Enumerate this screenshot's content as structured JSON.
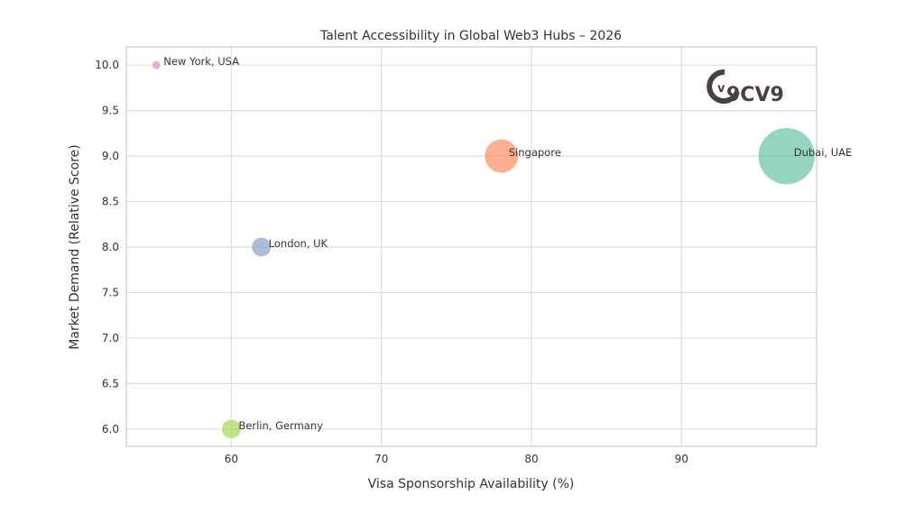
{
  "chart_data": {
    "type": "scatter",
    "title": "Talent Accessibility in Global Web3 Hubs – 2026",
    "xlabel": "Visa Sponsorship Availability (%)",
    "ylabel": "Market Demand (Relative Score)",
    "xlim": [
      53,
      99
    ],
    "ylim": [
      5.81,
      10.2
    ],
    "xticks": [
      60,
      70,
      80,
      90
    ],
    "yticks": [
      6.0,
      6.5,
      7.0,
      7.5,
      8.0,
      8.5,
      9.0,
      9.5,
      10.0
    ],
    "grid": true,
    "points": [
      {
        "label": "Dubai, UAE",
        "x": 97,
        "y": 9.0,
        "size": 1000,
        "color": "#66c2a5"
      },
      {
        "label": "Singapore",
        "x": 78,
        "y": 9.0,
        "size": 360,
        "color": "#fc8d62"
      },
      {
        "label": "London, UK",
        "x": 62,
        "y": 8.0,
        "size": 120,
        "color": "#8da0cb"
      },
      {
        "label": "New York, USA",
        "x": 55,
        "y": 10.0,
        "size": 25,
        "color": "#e78ac3"
      },
      {
        "label": "Berlin, Germany",
        "x": 60,
        "y": 6.0,
        "size": 120,
        "color": "#a6d854"
      }
    ]
  },
  "logo": {
    "text": "9CV9",
    "color": "#4a4040"
  }
}
